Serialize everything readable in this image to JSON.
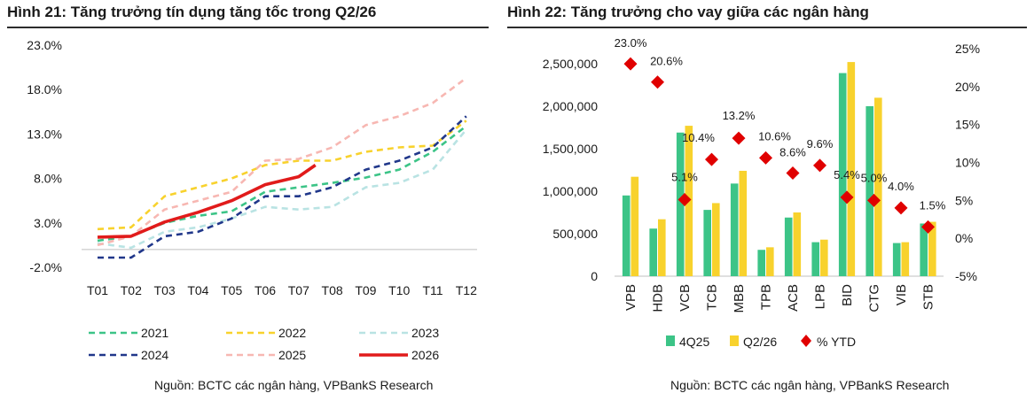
{
  "left_panel": {
    "title": "Hình 21: Tăng trưởng tín dụng tăng tốc trong Q2/26",
    "source": "Nguồn: BCTC các ngân hàng, VPBankS Research"
  },
  "right_panel": {
    "title": "Hình 22: Tăng trưởng cho vay giữa các ngân hàng",
    "source": "Nguồn: BCTC các ngân hàng, VPBankS Research"
  },
  "chart_data": [
    {
      "type": "line",
      "title": "Hình 21: Tăng trưởng tín dụng tăng tốc trong Q2/26",
      "categories": [
        "T01",
        "T02",
        "T03",
        "T04",
        "T05",
        "T06",
        "T07",
        "T08",
        "T09",
        "T10",
        "T11",
        "T12"
      ],
      "ylim": [
        -2.0,
        23.0
      ],
      "yticks": [
        -2.0,
        3.0,
        8.0,
        13.0,
        18.0,
        23.0
      ],
      "ytick_labels": [
        "-2.0%",
        "3.0%",
        "8.0%",
        "13.0%",
        "18.0%",
        "23.0%"
      ],
      "grid": false,
      "legend_position": "bottom",
      "series": [
        {
          "name": "2021",
          "color": "#3cc487",
          "dash": true,
          "x": [
            1,
            2,
            3,
            4,
            5,
            6,
            7,
            8,
            9,
            10,
            11,
            12
          ],
          "values": [
            1.0,
            1.5,
            3.0,
            3.8,
            4.3,
            6.5,
            7.0,
            7.5,
            8.1,
            9.0,
            11.0,
            13.9
          ]
        },
        {
          "name": "2022",
          "color": "#f8d22d",
          "dash": true,
          "x": [
            1,
            2,
            3,
            4,
            5,
            6,
            7,
            8,
            9,
            10,
            11,
            12
          ],
          "values": [
            2.3,
            2.5,
            6.0,
            7.0,
            8.0,
            9.5,
            10.0,
            10.0,
            11.0,
            11.5,
            11.7,
            14.5
          ]
        },
        {
          "name": "2023",
          "color": "#b9e3e3",
          "dash": true,
          "x": [
            1,
            2,
            3,
            4,
            5,
            6,
            7,
            8,
            9,
            10,
            11,
            12
          ],
          "values": [
            0.7,
            0.2,
            2.0,
            2.5,
            3.5,
            4.8,
            4.5,
            4.8,
            7.0,
            7.5,
            9.0,
            13.5
          ]
        },
        {
          "name": "2024",
          "color": "#20378a",
          "dash": true,
          "x": [
            1,
            2,
            3,
            4,
            5,
            6,
            7,
            8,
            9,
            10,
            11,
            12
          ],
          "values": [
            -0.9,
            -0.9,
            1.5,
            2.0,
            3.5,
            6.0,
            6.0,
            7.0,
            9.0,
            10.0,
            11.5,
            15.0
          ]
        },
        {
          "name": "2025",
          "color": "#f7b7b2",
          "dash": true,
          "x": [
            1,
            2,
            3,
            4,
            5,
            6,
            7,
            8,
            9,
            10,
            11,
            12
          ],
          "values": [
            0.5,
            1.5,
            4.5,
            5.5,
            6.5,
            10.0,
            10.2,
            11.5,
            14.0,
            15.0,
            16.5,
            19.3
          ]
        },
        {
          "name": "2026",
          "color": "#e11b1b",
          "dash": false,
          "x": [
            1,
            2,
            3,
            4,
            5,
            6,
            7,
            7.5
          ],
          "values": [
            1.4,
            1.5,
            3.1,
            4.2,
            5.5,
            7.3,
            8.2,
            9.5
          ]
        }
      ]
    },
    {
      "type": "bar",
      "title": "Hình 22: Tăng trưởng cho vay giữa các ngân hàng",
      "categories": [
        "VPB",
        "HDB",
        "VCB",
        "TCB",
        "MBB",
        "TPB",
        "ACB",
        "LPB",
        "BID",
        "CTG",
        "VIB",
        "STB"
      ],
      "ylim": [
        0,
        2500000
      ],
      "yticks": [
        0,
        500000,
        1000000,
        1500000,
        2000000,
        2500000
      ],
      "ytick_labels": [
        "0",
        "500,000",
        "1,000,000",
        "1,500,000",
        "2,000,000",
        "2,500,000"
      ],
      "y2lim": [
        -5,
        25
      ],
      "y2ticks": [
        -5,
        0,
        5,
        10,
        15,
        20,
        25
      ],
      "y2tick_labels": [
        "-5%",
        "0%",
        "5%",
        "10%",
        "15%",
        "20%",
        "25%"
      ],
      "grid": false,
      "legend_position": "bottom",
      "series": [
        {
          "name": "4Q25",
          "color": "#3cc487",
          "axis": "left",
          "values": [
            950000,
            560000,
            1690000,
            780000,
            1090000,
            310000,
            690000,
            400000,
            2390000,
            2000000,
            390000,
            620000
          ]
        },
        {
          "name": "Q2/26",
          "color": "#f8d22d",
          "axis": "left",
          "values": [
            1170000,
            670000,
            1770000,
            860000,
            1240000,
            340000,
            750000,
            430000,
            2520000,
            2100000,
            400000,
            640000
          ]
        },
        {
          "name": "% YTD",
          "color": "#e00000",
          "axis": "right",
          "marker": "diamond",
          "values": [
            23.0,
            20.6,
            5.1,
            10.4,
            13.2,
            10.6,
            8.6,
            9.6,
            5.4,
            5.0,
            4.0,
            1.5
          ],
          "labels": [
            "23.0%",
            "20.6%",
            "5.1%",
            "10.4%",
            "13.2%",
            "10.6%",
            "8.6%",
            "9.6%",
            "5.4%",
            "5.0%",
            "4.0%",
            "1.5%"
          ]
        }
      ]
    }
  ]
}
